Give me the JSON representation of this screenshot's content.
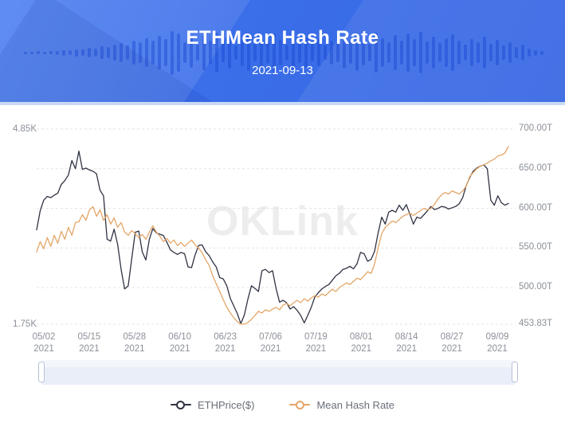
{
  "header": {
    "title": "ETHMean Hash Rate",
    "date": "2021-09-13"
  },
  "watermark": "OKLink",
  "legend": [
    {
      "label": "ETHPrice($)",
      "color": "#2f3342"
    },
    {
      "label": "Mean Hash Rate",
      "color": "#e4a668"
    }
  ],
  "navigator": {
    "preview_of": "Mean Hash Rate"
  },
  "colors": {
    "banner_blue": "#3b6ee9",
    "price_line": "#2f3342",
    "hash_line": "#e4a668",
    "grid_line": "#e6e3e4",
    "axis_text": "#8b9097",
    "watermark_text": "#ededed",
    "nav_fill": "#cbdaf3",
    "nav_stroke": "#a3b9dd",
    "nav_bg": "#e9eef8"
  },
  "chart_data": {
    "type": "line",
    "title": "ETHMean Hash Rate",
    "date": "2021-09-13",
    "grid": "horizontal-dashed",
    "left_axis": {
      "label_max": "4.85K",
      "label_min": "1.75K",
      "min": 1.75,
      "max": 4.85,
      "unit": "K"
    },
    "right_axis": {
      "min": 453.83,
      "max": 700,
      "unit": "T",
      "tick_labels": [
        "700.00T",
        "650.00T",
        "600.00T",
        "550.00T",
        "500.00T",
        "453.83T"
      ],
      "tick_values": [
        700,
        650,
        600,
        550,
        500,
        453.83
      ]
    },
    "x_axis": {
      "tick_labels": [
        "05/02",
        "05/15",
        "05/28",
        "06/10",
        "06/23",
        "07/06",
        "07/19",
        "08/01",
        "08/14",
        "08/27",
        "09/09"
      ],
      "year_label": "2021",
      "range": "2021-04-29 to 2021-09-13"
    },
    "series": [
      {
        "name": "ETHPrice($)",
        "axis": "left",
        "unit": "K",
        "color": "#2f3342",
        "values": [
          3.25,
          3.55,
          3.72,
          3.78,
          3.76,
          3.8,
          3.83,
          3.97,
          4.03,
          4.12,
          4.35,
          4.22,
          4.5,
          4.21,
          4.23,
          4.2,
          4.18,
          4.14,
          3.88,
          3.79,
          3.1,
          3.07,
          3.26,
          3.02,
          2.62,
          2.31,
          2.36,
          2.79,
          3.21,
          3.23,
          2.9,
          2.77,
          3.1,
          3.27,
          3.2,
          3.18,
          3.16,
          3.05,
          2.93,
          2.89,
          2.86,
          2.89,
          2.87,
          2.66,
          2.65,
          2.85,
          3.0,
          3.01,
          2.9,
          2.84,
          2.74,
          2.66,
          2.49,
          2.47,
          2.36,
          2.16,
          2.04,
          1.92,
          1.76,
          1.9,
          2.15,
          2.36,
          2.32,
          2.27,
          2.6,
          2.62,
          2.57,
          2.6,
          2.32,
          2.1,
          2.13,
          2.09,
          1.99,
          2.03,
          1.97,
          1.89,
          1.77,
          1.89,
          2.02,
          2.18,
          2.25,
          2.31,
          2.35,
          2.38,
          2.45,
          2.52,
          2.56,
          2.62,
          2.64,
          2.67,
          2.63,
          2.71,
          2.89,
          2.87,
          2.75,
          2.78,
          2.91,
          3.2,
          3.45,
          3.34,
          3.53,
          3.56,
          3.53,
          3.64,
          3.56,
          3.65,
          3.5,
          3.34,
          3.45,
          3.43,
          3.49,
          3.55,
          3.62,
          3.57,
          3.59,
          3.62,
          3.61,
          3.58,
          3.6,
          3.62,
          3.66,
          3.76,
          3.95,
          4.08,
          4.18,
          4.23,
          4.26,
          4.28,
          4.22,
          3.72,
          3.64,
          3.79,
          3.68,
          3.64,
          3.67
        ]
      },
      {
        "name": "Mean Hash Rate",
        "axis": "right",
        "unit": "T",
        "color": "#e4a668",
        "values": [
          545,
          558,
          549,
          563,
          552,
          566,
          556,
          571,
          561,
          576,
          566,
          582,
          583,
          592,
          585,
          598,
          602,
          590,
          598,
          585,
          592,
          580,
          588,
          576,
          582,
          570,
          566,
          572,
          568,
          563,
          567,
          561,
          570,
          578,
          570,
          565,
          558,
          562,
          556,
          560,
          553,
          557,
          552,
          556,
          560,
          554,
          550,
          544,
          535,
          528,
          515,
          505,
          495,
          485,
          475,
          468,
          462,
          457,
          454,
          453.9,
          456,
          460,
          465,
          470,
          468,
          472,
          470,
          473,
          475,
          472,
          478,
          480,
          477,
          481,
          484,
          481,
          486,
          483,
          487,
          490,
          488,
          492,
          490,
          494,
          498,
          495,
          500,
          503,
          506,
          504,
          508,
          512,
          510,
          515,
          520,
          518,
          530,
          550,
          568,
          576,
          580,
          584,
          582,
          586,
          590,
          592,
          594,
          591,
          594,
          597,
          600,
          598,
          600,
          605,
          612,
          617,
          620,
          618,
          622,
          620,
          618,
          622,
          628,
          640,
          645,
          650,
          653,
          655,
          657,
          660,
          662,
          666,
          667,
          670,
          678
        ]
      }
    ]
  }
}
